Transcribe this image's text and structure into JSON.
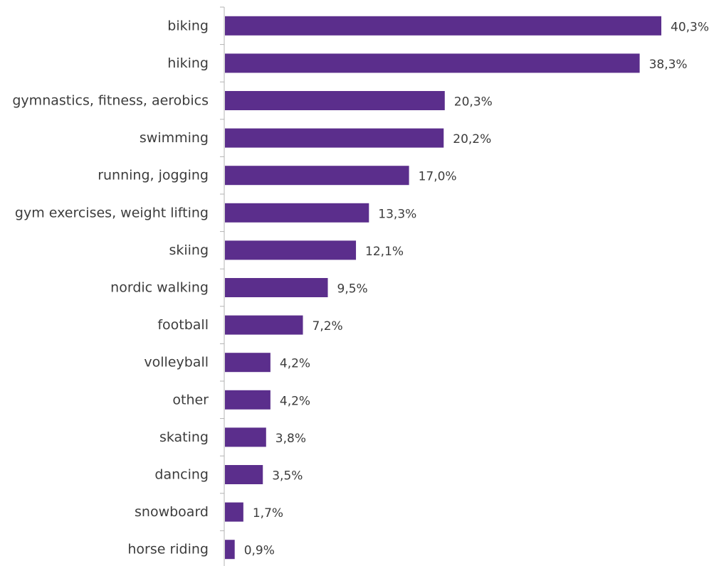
{
  "chart_data": {
    "type": "bar",
    "orientation": "horizontal",
    "categories": [
      "biking",
      "hiking",
      "gymnastics, fitness, aerobics",
      "swimming",
      "running, jogging",
      "gym exercises, weight lifting",
      "skiing",
      "nordic walking",
      "football",
      "volleyball",
      "other",
      "skating",
      "dancing",
      "snowboard",
      "horse riding"
    ],
    "values": [
      40.3,
      38.3,
      20.3,
      20.2,
      17.0,
      13.3,
      12.1,
      9.5,
      7.2,
      4.2,
      4.2,
      3.8,
      3.5,
      1.7,
      0.9
    ],
    "value_labels": [
      "40,3%",
      "38,3%",
      "20,3%",
      "20,2%",
      "17,0%",
      "13,3%",
      "12,1%",
      "9,5%",
      "7,2%",
      "4,2%",
      "4,2%",
      "3,8%",
      "3,5%",
      "1,7%",
      "0,9%"
    ],
    "title": "",
    "xlabel": "",
    "ylabel": "",
    "xlim": [
      0,
      40.3
    ],
    "grid": false,
    "legend": "none",
    "bar_color": "#5b2e8c"
  }
}
